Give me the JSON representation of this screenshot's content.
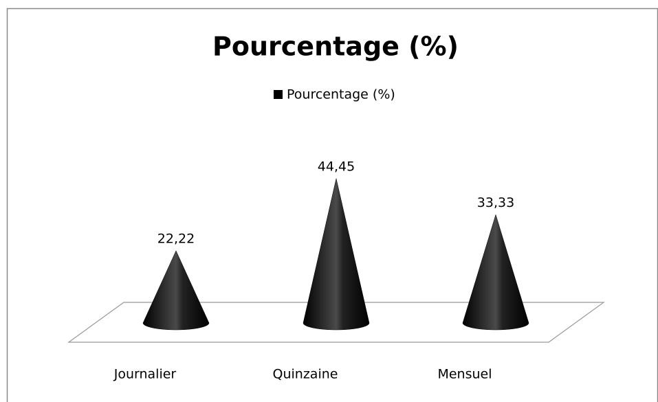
{
  "chart_data": {
    "type": "cone",
    "title": "Pourcentage (%)",
    "categories": [
      "Journalier",
      "Quinzaine",
      "Mensuel"
    ],
    "series": [
      {
        "name": "Pourcentage (%)",
        "color": "#000000",
        "values": [
          22.22,
          44.45,
          33.33
        ],
        "value_labels": [
          "22,22",
          "44,45",
          "33,33"
        ]
      }
    ],
    "legend": "top"
  }
}
